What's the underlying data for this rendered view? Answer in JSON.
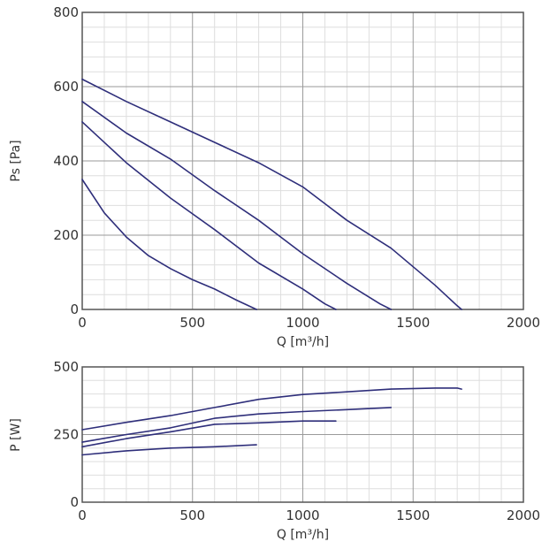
{
  "colors": {
    "curve": "#2e2e7a",
    "frame": "#555555",
    "grid_major": "#9a9a9a",
    "grid_minor": "#dedede"
  },
  "chart_data": [
    {
      "type": "line",
      "xlabel": "Q [m³/h]",
      "ylabel": "Ps [Pa]",
      "xlim": [
        0,
        2000
      ],
      "ylim": [
        0,
        800
      ],
      "xticks": [
        0,
        500,
        1000,
        1500,
        2000
      ],
      "yticks": [
        0,
        200,
        400,
        600,
        800
      ],
      "x_major_step": 500,
      "x_minor_step": 100,
      "y_major_step": 200,
      "y_minor_step": 40,
      "grid": true,
      "series": [
        {
          "x": [
            0,
            200,
            400,
            600,
            800,
            1000,
            1200,
            1400,
            1600,
            1700,
            1720
          ],
          "y": [
            620,
            560,
            505,
            450,
            395,
            330,
            240,
            165,
            65,
            10,
            0
          ]
        },
        {
          "x": [
            0,
            200,
            400,
            600,
            800,
            1000,
            1200,
            1350,
            1400
          ],
          "y": [
            560,
            475,
            405,
            320,
            240,
            150,
            70,
            15,
            0
          ]
        },
        {
          "x": [
            0,
            200,
            400,
            600,
            800,
            1000,
            1100,
            1150
          ],
          "y": [
            505,
            395,
            300,
            215,
            125,
            55,
            15,
            0
          ]
        },
        {
          "x": [
            0,
            100,
            200,
            300,
            400,
            500,
            600,
            700,
            790
          ],
          "y": [
            350,
            260,
            195,
            145,
            110,
            80,
            55,
            25,
            0
          ]
        }
      ]
    },
    {
      "type": "line",
      "xlabel": "Q [m³/h]",
      "ylabel": "P [W]",
      "xlim": [
        0,
        2000
      ],
      "ylim": [
        0,
        500
      ],
      "xticks": [
        0,
        500,
        1000,
        1500,
        2000
      ],
      "yticks": [
        0,
        250,
        500
      ],
      "x_major_step": 500,
      "x_minor_step": 100,
      "y_major_step": 250,
      "y_minor_step": 50,
      "grid": true,
      "series": [
        {
          "x": [
            0,
            200,
            400,
            600,
            800,
            1000,
            1200,
            1400,
            1600,
            1700,
            1720
          ],
          "y": [
            268,
            295,
            320,
            350,
            380,
            398,
            408,
            418,
            422,
            422,
            418
          ]
        },
        {
          "x": [
            0,
            200,
            400,
            600,
            800,
            1000,
            1200,
            1400
          ],
          "y": [
            222,
            250,
            275,
            310,
            326,
            335,
            342,
            350
          ]
        },
        {
          "x": [
            0,
            200,
            400,
            600,
            800,
            1000,
            1150
          ],
          "y": [
            205,
            235,
            260,
            288,
            293,
            300,
            300
          ]
        },
        {
          "x": [
            0,
            200,
            400,
            600,
            790
          ],
          "y": [
            175,
            190,
            200,
            205,
            212
          ]
        }
      ]
    }
  ]
}
